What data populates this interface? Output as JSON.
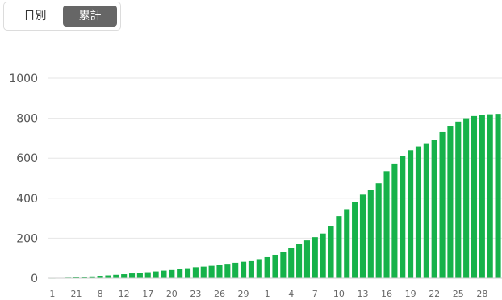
{
  "toggle": {
    "daily_label": "日別",
    "cumulative_label": "累計",
    "selected": "cumulative"
  },
  "colors": {
    "bar": "#16b24a",
    "grid": "#e6e6e6",
    "toggle_active": "#666666"
  },
  "chart_data": {
    "type": "bar",
    "title": "",
    "xlabel": "",
    "ylabel": "",
    "ylim": [
      0,
      1000
    ],
    "yticks": [
      0,
      200,
      400,
      600,
      800,
      1000
    ],
    "grid": true,
    "x_tick_labels": [
      {
        "index": 0,
        "label": "1"
      },
      {
        "index": 3,
        "label": "21"
      },
      {
        "index": 6,
        "label": "8"
      },
      {
        "index": 9,
        "label": "12"
      },
      {
        "index": 12,
        "label": "17"
      },
      {
        "index": 15,
        "label": "20"
      },
      {
        "index": 18,
        "label": "23"
      },
      {
        "index": 21,
        "label": "26"
      },
      {
        "index": 24,
        "label": "29"
      },
      {
        "index": 27,
        "label": "1"
      },
      {
        "index": 30,
        "label": "4"
      },
      {
        "index": 33,
        "label": "7"
      },
      {
        "index": 36,
        "label": "10"
      },
      {
        "index": 39,
        "label": "13"
      },
      {
        "index": 42,
        "label": "16"
      },
      {
        "index": 45,
        "label": "19"
      },
      {
        "index": 48,
        "label": "22"
      },
      {
        "index": 51,
        "label": "25"
      },
      {
        "index": 54,
        "label": "28"
      }
    ],
    "values": [
      1,
      2,
      3,
      5,
      7,
      9,
      12,
      14,
      17,
      20,
      24,
      27,
      30,
      34,
      38,
      41,
      45,
      50,
      55,
      58,
      62,
      67,
      72,
      77,
      82,
      85,
      95,
      105,
      117,
      133,
      153,
      172,
      189,
      205,
      223,
      262,
      310,
      345,
      380,
      418,
      440,
      475,
      535,
      573,
      610,
      640,
      659,
      675,
      690,
      730,
      762,
      783,
      800,
      811,
      818,
      820,
      822
    ]
  }
}
